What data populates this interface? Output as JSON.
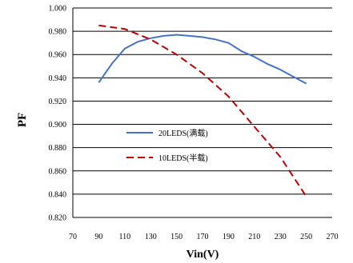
{
  "chart_data": {
    "type": "line",
    "title": "",
    "xlabel": "Vin(V)",
    "ylabel": "PF",
    "xlim": [
      70,
      270
    ],
    "ylim": [
      0.82,
      1.0
    ],
    "x_ticks": [
      "70",
      "90",
      "110",
      "130",
      "150",
      "170",
      "190",
      "210",
      "230",
      "250",
      "270"
    ],
    "y_ticks": [
      "0.820",
      "0.840",
      "0.860",
      "0.880",
      "0.900",
      "0.920",
      "0.940",
      "0.960",
      "0.980",
      "1.000"
    ],
    "grid": "horizontal",
    "legend_position": "center-left",
    "series": [
      {
        "name": "20LEDS(满载)",
        "color": "#4472C4",
        "dash": "solid",
        "x": [
          90,
          100,
          110,
          120,
          130,
          140,
          150,
          160,
          170,
          180,
          190,
          200,
          210,
          220,
          230,
          240,
          250
        ],
        "y": [
          0.936,
          0.952,
          0.965,
          0.971,
          0.974,
          0.976,
          0.977,
          0.976,
          0.975,
          0.973,
          0.97,
          0.963,
          0.958,
          0.952,
          0.947,
          0.941,
          0.935
        ]
      },
      {
        "name": "10LEDS(半载)",
        "color": "#C00000",
        "dash": "dashed",
        "x": [
          90,
          110,
          130,
          150,
          170,
          190,
          210,
          230,
          250
        ],
        "y": [
          0.985,
          0.982,
          0.973,
          0.96,
          0.944,
          0.924,
          0.898,
          0.872,
          0.838
        ]
      }
    ]
  }
}
